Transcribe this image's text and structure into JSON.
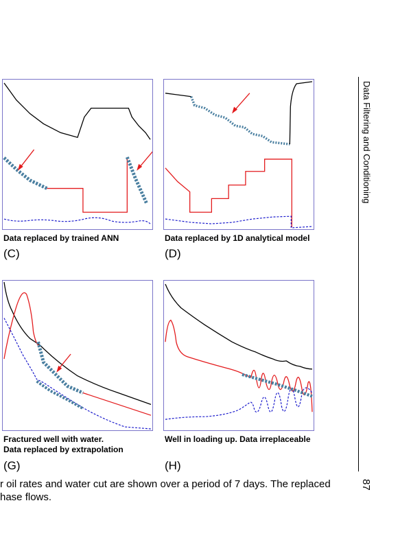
{
  "panels": [
    {
      "caption": "Data replaced by trained ANN",
      "letter": "(C)"
    },
    {
      "caption": "Data replaced by 1D analytical model",
      "letter": "(D)"
    },
    {
      "caption_line1": "Fractured well with water.",
      "caption_line2": "Data replaced by extrapolation",
      "letter": "(G)"
    },
    {
      "caption": "Well in loading up. Data irreplaceable",
      "letter": "(H)"
    }
  ],
  "body_text": {
    "line1": "r oil rates and water cut are shown over a period of 7 days. The replaced",
    "line2": "hase flows."
  },
  "running_header": "Data Filtering and Conditioning",
  "page_number": "87",
  "colors": {
    "frame": "#7a74c9",
    "gas": "#000000",
    "oil": "#e31a1c",
    "water": "#1a1acc",
    "replaced": "#4a7fa0"
  }
}
